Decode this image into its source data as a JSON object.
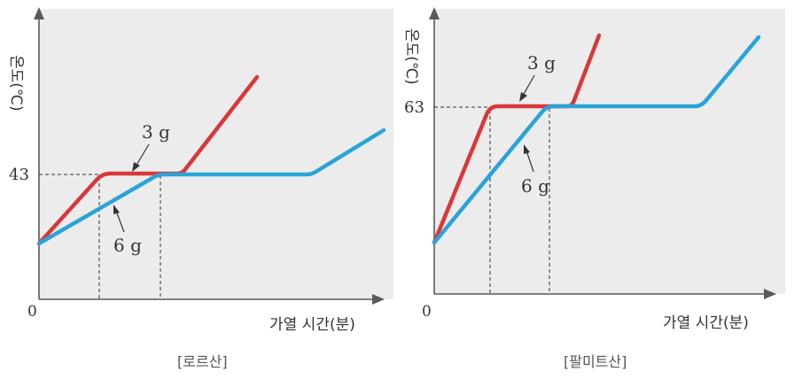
{
  "colors": {
    "plot_bg": "#ececec",
    "axis": "#5a5a5a",
    "red": "#d8383a",
    "blue": "#2aa3d8",
    "text": "#333333",
    "caption": "#555555"
  },
  "chart_data": [
    {
      "type": "line",
      "title": "[로르산]",
      "ylabel": "온도(℃)",
      "xlabel": "가열 시간(분)",
      "origin_label": "0",
      "xlim": [
        0,
        100
      ],
      "ylim": [
        0,
        100
      ],
      "plateau_label": "43",
      "plateau_y": 43,
      "series": [
        {
          "name": "3g",
          "color": "red",
          "points": [
            [
              0,
              20
            ],
            [
              18,
              43
            ],
            [
              41,
              43
            ],
            [
              64,
              78
            ]
          ],
          "label": "3 g"
        },
        {
          "name": "6g",
          "color": "blue",
          "points": [
            [
              0,
              20
            ],
            [
              35,
              43
            ],
            [
              80,
              43
            ],
            [
              100,
              58
            ]
          ],
          "label": "6 g"
        }
      ]
    },
    {
      "type": "line",
      "title": "[팔미트산]",
      "ylabel": "온도(℃)",
      "xlabel": "가열 시간(분)",
      "origin_label": "0",
      "xlim": [
        0,
        100
      ],
      "ylim": [
        0,
        100
      ],
      "plateau_label": "63",
      "plateau_y": 63,
      "series": [
        {
          "name": "3g",
          "color": "red",
          "points": [
            [
              0,
              20
            ],
            [
              17,
              63
            ],
            [
              39,
              63
            ],
            [
              48,
              95
            ]
          ],
          "label": "3 g"
        },
        {
          "name": "6g",
          "color": "blue",
          "points": [
            [
              0,
              20
            ],
            [
              34,
              63
            ],
            [
              80,
              63
            ],
            [
              100,
              93
            ]
          ],
          "label": "6 g"
        }
      ]
    }
  ]
}
